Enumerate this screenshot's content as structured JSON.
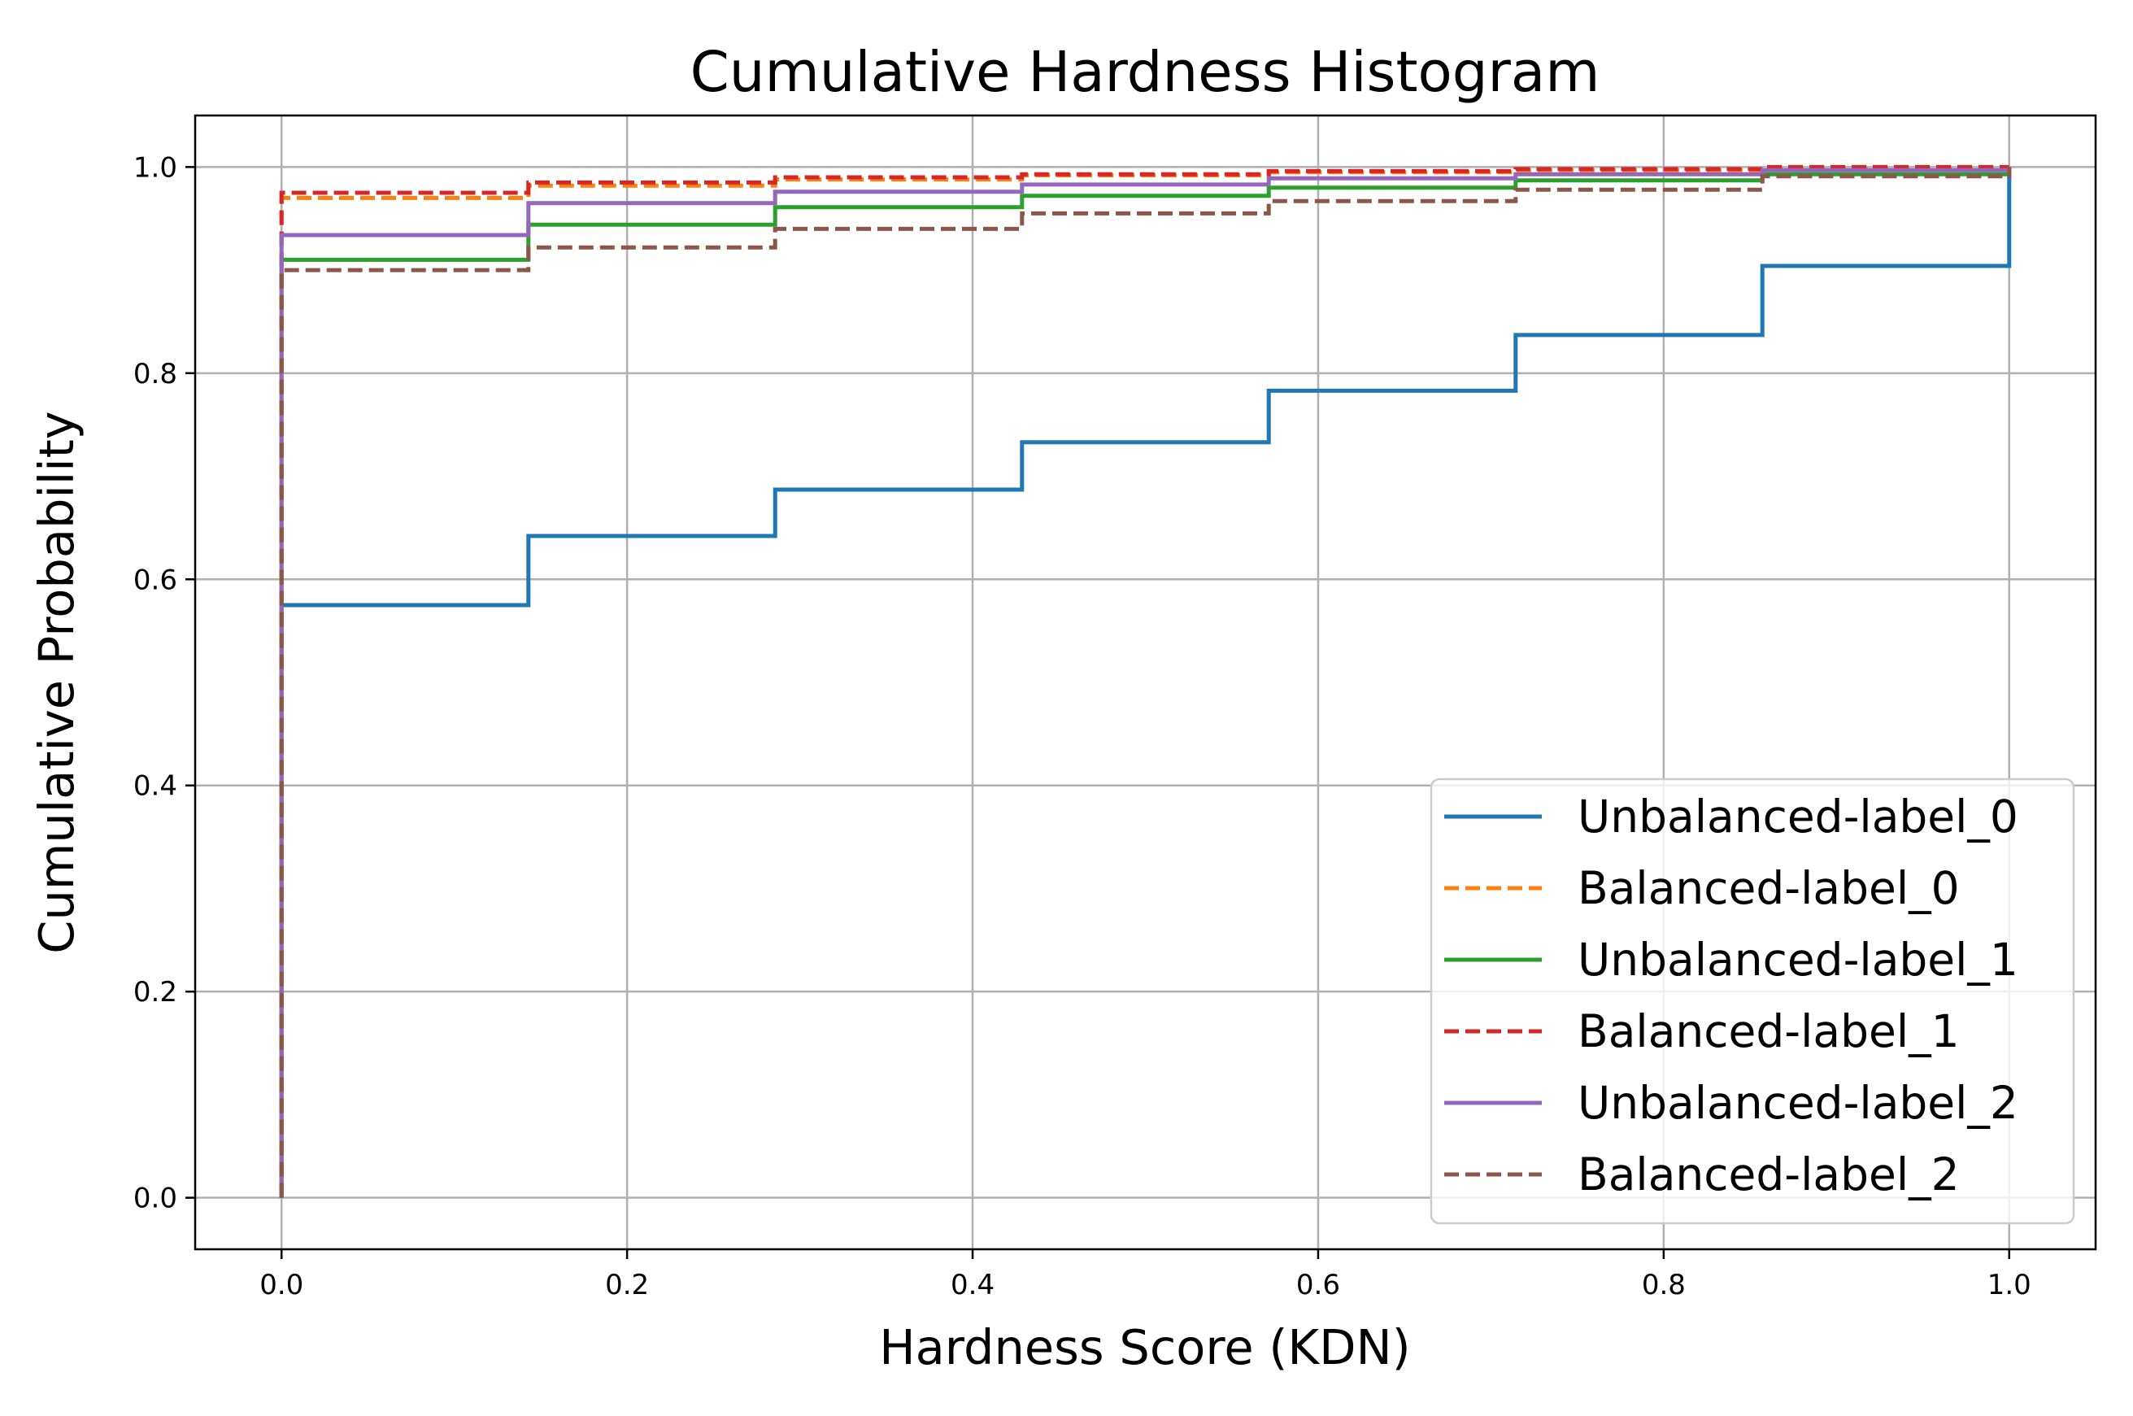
{
  "chart_data": {
    "type": "line",
    "title": "Cumulative Hardness Histogram",
    "xlabel": "Hardness Score (KDN)",
    "ylabel": "Cumulative Probability",
    "xlim": [
      -0.05,
      1.05
    ],
    "ylim": [
      -0.05,
      1.05
    ],
    "xticks": [
      0.0,
      0.2,
      0.4,
      0.6,
      0.8,
      1.0
    ],
    "xtick_labels": [
      "0.0",
      "0.2",
      "0.4",
      "0.6",
      "0.8",
      "1.0"
    ],
    "yticks": [
      0.0,
      0.2,
      0.4,
      0.6,
      0.8,
      1.0
    ],
    "ytick_labels": [
      "0.0",
      "0.2",
      "0.4",
      "0.6",
      "0.8",
      "1.0"
    ],
    "grid": true,
    "legend_position": "bottom-right",
    "step_x": [
      0.0,
      0.1429,
      0.2857,
      0.4286,
      0.5714,
      0.7143,
      0.8571,
      1.0
    ],
    "series": [
      {
        "name": "Unbalanced-label_0",
        "color": "#1f77b4",
        "dash": "solid",
        "values": [
          0.575,
          0.642,
          0.687,
          0.733,
          0.783,
          0.837,
          0.904,
          1.0
        ]
      },
      {
        "name": "Balanced-label_0",
        "color": "#ff7f0e",
        "dash": "dashed",
        "values": [
          0.97,
          0.982,
          0.988,
          0.992,
          0.995,
          0.997,
          0.999,
          1.0
        ]
      },
      {
        "name": "Unbalanced-label_1",
        "color": "#2ca02c",
        "dash": "solid",
        "values": [
          0.91,
          0.944,
          0.961,
          0.972,
          0.98,
          0.987,
          0.993,
          1.0
        ]
      },
      {
        "name": "Balanced-label_1",
        "color": "#d62728",
        "dash": "dashed",
        "values": [
          0.975,
          0.985,
          0.99,
          0.993,
          0.996,
          0.998,
          1.0,
          1.0
        ]
      },
      {
        "name": "Unbalanced-label_2",
        "color": "#9467bd",
        "dash": "solid",
        "values": [
          0.934,
          0.965,
          0.976,
          0.983,
          0.989,
          0.993,
          0.997,
          1.0
        ]
      },
      {
        "name": "Balanced-label_2",
        "color": "#8c564b",
        "dash": "dashed",
        "values": [
          0.9,
          0.922,
          0.94,
          0.955,
          0.967,
          0.978,
          0.991,
          1.0
        ]
      }
    ]
  }
}
